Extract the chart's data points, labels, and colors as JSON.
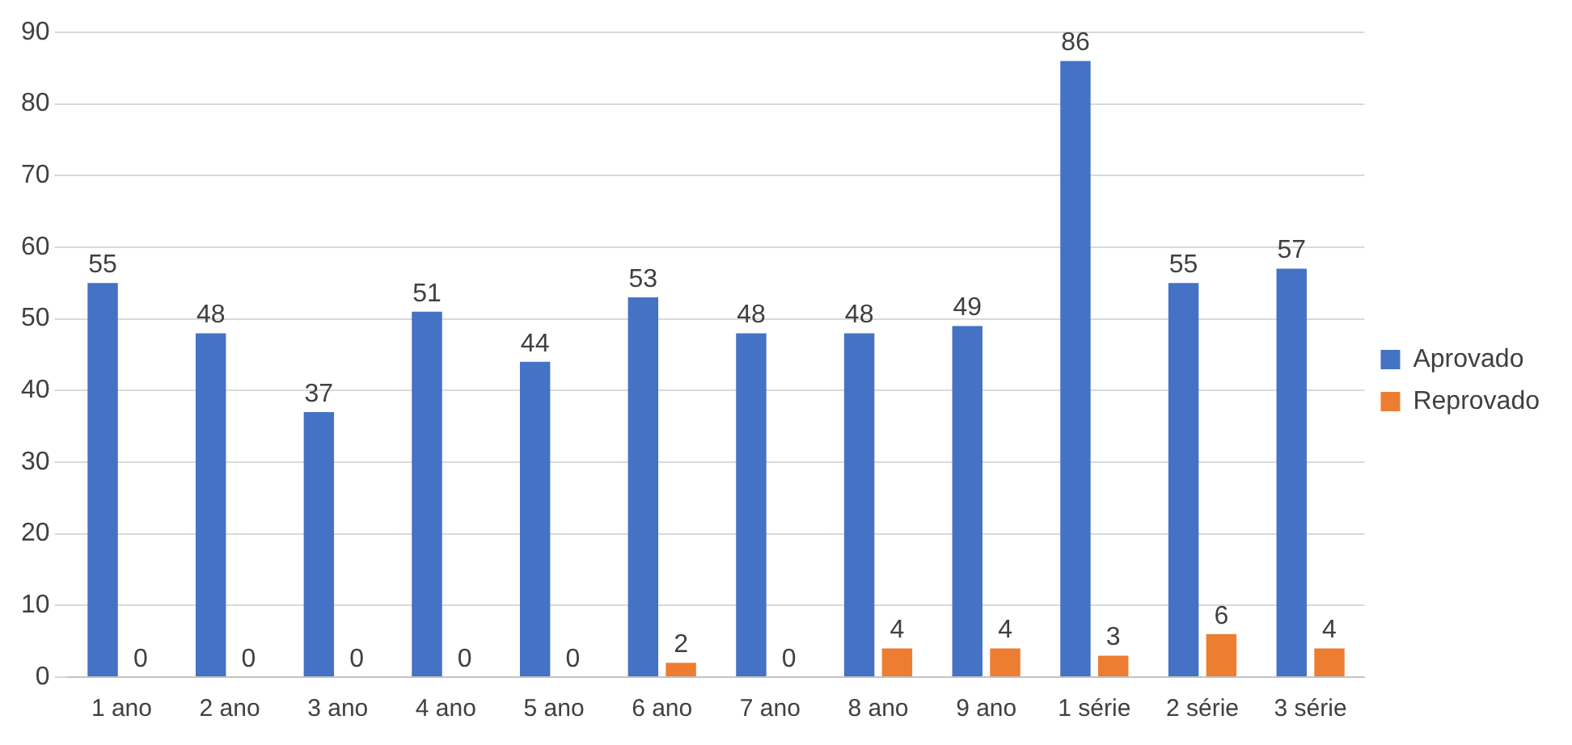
{
  "chart_data": {
    "type": "bar",
    "categories": [
      "1 ano",
      "2 ano",
      "3 ano",
      "4 ano",
      "5 ano",
      "6 ano",
      "7 ano",
      "8 ano",
      "9 ano",
      "1 série",
      "2 série",
      "3 série"
    ],
    "series": [
      {
        "name": "Aprovado",
        "color": "#4472c4",
        "values": [
          55,
          48,
          37,
          51,
          44,
          53,
          48,
          48,
          49,
          86,
          55,
          57
        ]
      },
      {
        "name": "Reprovado",
        "color": "#ed7d31",
        "values": [
          0,
          0,
          0,
          0,
          0,
          2,
          0,
          4,
          4,
          3,
          6,
          4
        ]
      }
    ],
    "ylim": [
      0,
      90
    ],
    "yticks": [
      0,
      10,
      20,
      30,
      40,
      50,
      60,
      70,
      80,
      90
    ],
    "grid": "y",
    "legend": "right",
    "data_labels": true
  }
}
